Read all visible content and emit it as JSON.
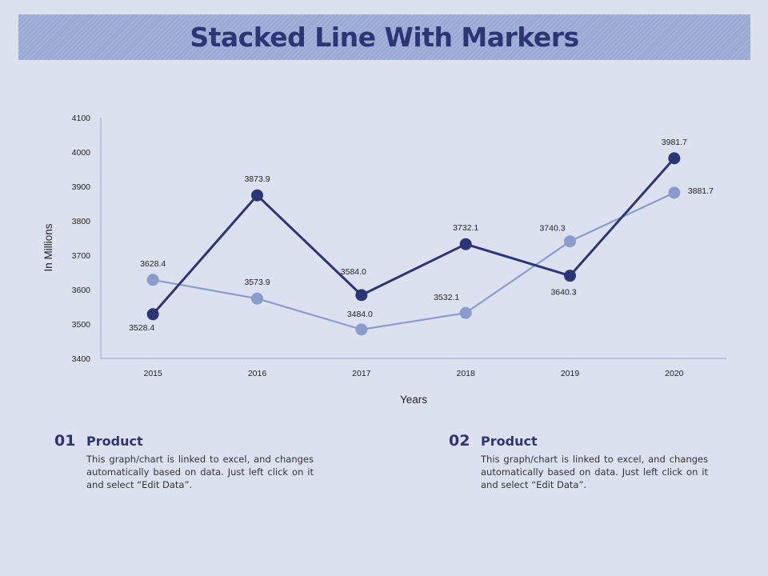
{
  "title": "Stacked Line With Markers",
  "colors": {
    "series1": "#2e3575",
    "series2": "#8b9ccc",
    "axis": "#9aa6c8",
    "text": "#222222"
  },
  "chart_data": {
    "type": "line",
    "x": [
      "2015",
      "2016",
      "2017",
      "2018",
      "2019",
      "2020"
    ],
    "series": [
      {
        "values": [
          3528.4,
          3873.9,
          3584.0,
          3732.1,
          3640.3,
          3981.7
        ],
        "labels": [
          "3528.4",
          "3873.9",
          "3584.0",
          "3732.1",
          "3640.3",
          "3981.7"
        ],
        "color": "#2e3575"
      },
      {
        "values": [
          3628.4,
          3573.9,
          3484.0,
          3532.1,
          3740.3,
          3881.7
        ],
        "labels": [
          "3628.4",
          "3573.9",
          "3484.0",
          "3532.1",
          "3740.3",
          "3881.7"
        ],
        "color": "#8b9ccc"
      }
    ],
    "xlabel": "Years",
    "ylabel": "In Millions",
    "ylim": [
      3400,
      4100
    ],
    "yticks": [
      3400,
      3500,
      3600,
      3700,
      3800,
      3900,
      4000,
      4100
    ],
    "grid": false,
    "markers": true
  },
  "info": [
    {
      "number": "01",
      "heading": "Product",
      "text": "This graph/chart is linked to excel, and changes automatically based on data. Just left click on it and select “Edit Data”."
    },
    {
      "number": "02",
      "heading": "Product",
      "text": "This graph/chart is linked to excel, and changes automatically based on data. Just left click on it and select “Edit Data”."
    }
  ]
}
